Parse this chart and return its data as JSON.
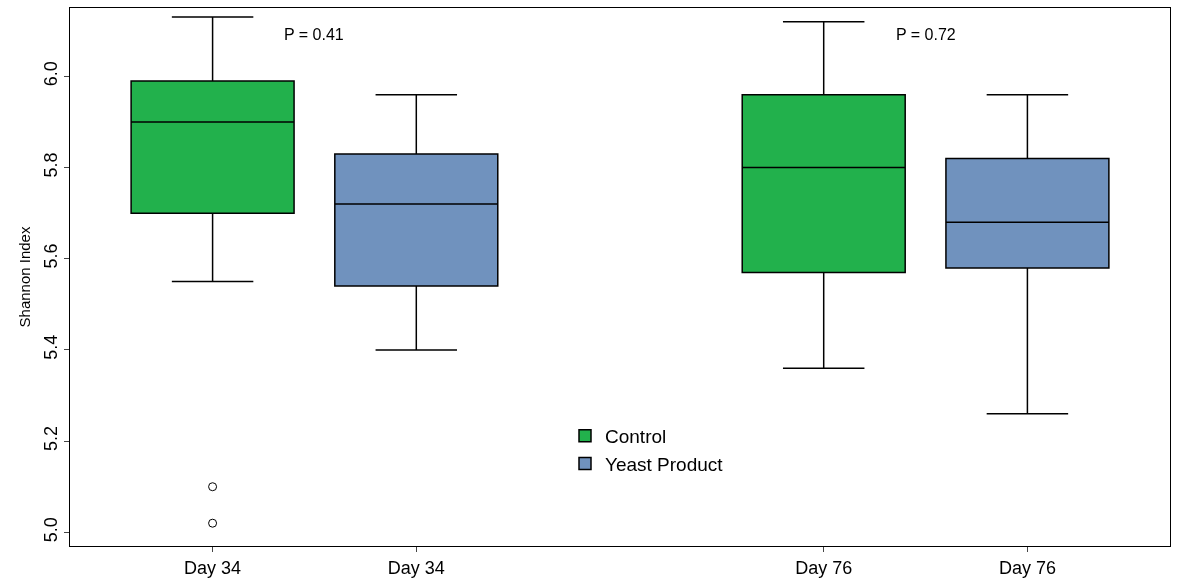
{
  "chart_data": {
    "type": "box",
    "ylabel": "Shannon Index",
    "categories": [
      "Day 34",
      "Day 34",
      null,
      "Day 76",
      "Day 76"
    ],
    "ylim": [
      4.97,
      6.15
    ],
    "yticks": [
      {
        "value": 5.0,
        "label": "5.0"
      },
      {
        "value": 5.2,
        "label": "5.2"
      },
      {
        "value": 5.4,
        "label": "5.4"
      },
      {
        "value": 5.6,
        "label": "5.6"
      },
      {
        "value": 5.8,
        "label": "5.8"
      },
      {
        "value": 6.0,
        "label": "6.0"
      }
    ],
    "grid": false,
    "legend": "bottom",
    "annotations": [
      "P = 0.41",
      "P = 0.72"
    ],
    "series": [
      {
        "name": "Control",
        "color": "#22b14c",
        "boxes": [
          {
            "low": 5.55,
            "q1": 5.7,
            "median": 5.9,
            "q3": 5.99,
            "high": 6.13,
            "outliers": [
              5.1,
              5.02
            ]
          },
          null,
          null,
          {
            "low": 5.36,
            "q1": 5.57,
            "median": 5.8,
            "q3": 5.96,
            "high": 6.12
          },
          null
        ]
      },
      {
        "name": "Yeast Product",
        "color": "#7092be",
        "boxes": [
          null,
          {
            "low": 5.4,
            "q1": 5.54,
            "median": 5.72,
            "q3": 5.83,
            "high": 5.96
          },
          null,
          null,
          {
            "low": 5.26,
            "q1": 5.58,
            "median": 5.68,
            "q3": 5.82,
            "high": 5.96
          }
        ]
      }
    ]
  }
}
